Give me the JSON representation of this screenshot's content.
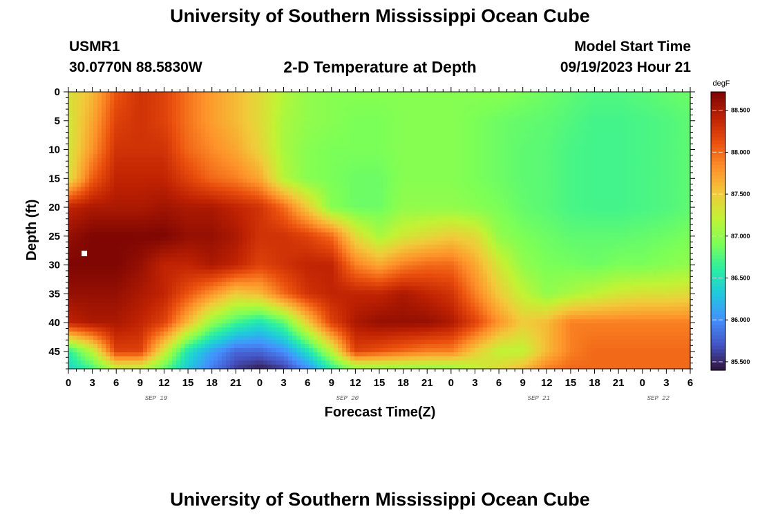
{
  "header": {
    "title": "University of Southern Mississippi Ocean Cube",
    "station": "USMR1",
    "location": "30.0770N  88.5830W",
    "subtitle": "2-D Temperature at Depth",
    "model_start_label": "Model Start Time",
    "model_start_value": "09/19/2023 Hour 21"
  },
  "footer": {
    "title": "University of Southern Mississippi Ocean Cube"
  },
  "chart_data": {
    "type": "heatmap",
    "title": "2-D Temperature at Depth",
    "xlabel": "Forecast Time(Z)",
    "ylabel": "Depth (ft)",
    "x_ticks": [
      "0",
      "3",
      "6",
      "9",
      "12",
      "15",
      "18",
      "21",
      "0",
      "3",
      "6",
      "9",
      "12",
      "15",
      "18",
      "21",
      "0",
      "3",
      "6",
      "9",
      "12",
      "15",
      "18",
      "21",
      "0",
      "3",
      "6"
    ],
    "x_hours_range": [
      0,
      78
    ],
    "date_labels": [
      {
        "text": "SEP 19",
        "hour": 11
      },
      {
        "text": "SEP 20",
        "hour": 35
      },
      {
        "text": "SEP 21",
        "hour": 59
      },
      {
        "text": "SEP 22",
        "hour": 74
      }
    ],
    "y_ticks": [
      0,
      5,
      10,
      15,
      20,
      25,
      30,
      35,
      40,
      45
    ],
    "ylim": [
      0,
      48
    ],
    "y_inverted": true,
    "colorbar": {
      "unit": "degF",
      "range": [
        85.4,
        88.72
      ],
      "ticks": [
        "85.500",
        "86.000",
        "86.500",
        "87.000",
        "87.500",
        "88.000",
        "88.500"
      ],
      "colormap": [
        "#30123b",
        "#4454c4",
        "#4490fe",
        "#1fc8de",
        "#29efa2",
        "#7dff56",
        "#c1f334",
        "#f1ca3a",
        "#fe922a",
        "#ea4f0d",
        "#be2102",
        "#7a0403"
      ]
    },
    "marker": {
      "hour": 2,
      "depth_ft": 28,
      "color": "#ffffff"
    },
    "value_grid": {
      "x_hours": [
        0,
        3,
        6,
        9,
        12,
        15,
        18,
        21,
        24,
        27,
        30,
        33,
        36,
        39,
        42,
        45,
        48,
        51,
        54,
        57,
        60,
        63,
        66,
        69,
        72,
        75,
        78
      ],
      "depths_ft": [
        0,
        5,
        10,
        15,
        20,
        25,
        30,
        35,
        40,
        45,
        48
      ],
      "values_degF": [
        [
          87.35,
          87.6,
          88.1,
          88.3,
          88.2,
          87.95,
          87.75,
          87.6,
          87.4,
          87.15,
          87.0,
          86.95,
          86.95,
          86.95,
          86.95,
          86.95,
          86.95,
          86.95,
          86.95,
          86.9,
          86.85,
          86.8,
          86.75,
          86.75,
          86.78,
          86.82,
          86.85
        ],
        [
          87.3,
          87.7,
          88.2,
          88.3,
          88.2,
          87.95,
          87.75,
          87.6,
          87.4,
          87.1,
          87.0,
          86.95,
          86.9,
          86.9,
          86.95,
          86.95,
          86.95,
          86.9,
          86.85,
          86.82,
          86.8,
          86.75,
          86.7,
          86.7,
          86.72,
          86.75,
          86.8
        ],
        [
          87.3,
          87.8,
          88.3,
          88.3,
          88.3,
          88.0,
          87.85,
          87.7,
          87.45,
          87.1,
          86.95,
          86.9,
          86.9,
          86.9,
          86.95,
          86.95,
          86.95,
          86.9,
          86.85,
          86.8,
          86.78,
          86.72,
          86.7,
          86.7,
          86.72,
          86.75,
          86.8
        ],
        [
          87.35,
          88.05,
          88.4,
          88.4,
          88.4,
          88.2,
          88.0,
          87.9,
          87.7,
          87.15,
          86.95,
          86.9,
          86.85,
          86.85,
          86.95,
          86.95,
          86.95,
          86.9,
          86.85,
          86.8,
          86.78,
          86.72,
          86.7,
          86.7,
          86.72,
          86.75,
          86.8
        ],
        [
          88.4,
          88.5,
          88.5,
          88.5,
          88.55,
          88.5,
          88.5,
          88.4,
          88.3,
          88.0,
          87.5,
          86.95,
          86.85,
          86.85,
          87.0,
          87.0,
          87.0,
          86.95,
          86.9,
          86.82,
          86.78,
          86.72,
          86.7,
          86.7,
          86.72,
          86.75,
          86.8
        ],
        [
          88.6,
          88.7,
          88.7,
          88.7,
          88.7,
          88.6,
          88.6,
          88.5,
          88.3,
          88.3,
          88.2,
          88.0,
          87.4,
          87.1,
          87.3,
          87.4,
          87.5,
          87.4,
          87.0,
          86.9,
          86.85,
          86.8,
          86.8,
          86.8,
          86.82,
          86.85,
          86.9
        ],
        [
          88.7,
          88.7,
          88.7,
          88.6,
          88.4,
          88.4,
          88.5,
          88.4,
          88.2,
          88.3,
          88.4,
          88.4,
          87.9,
          87.7,
          87.9,
          88.0,
          88.0,
          87.7,
          87.3,
          87.0,
          86.9,
          86.88,
          86.85,
          86.9,
          86.9,
          86.95,
          87.0
        ],
        [
          88.6,
          88.6,
          88.6,
          88.5,
          88.4,
          88.1,
          87.8,
          87.5,
          87.6,
          88.0,
          88.3,
          88.4,
          88.4,
          88.4,
          88.5,
          88.4,
          88.3,
          87.9,
          87.5,
          87.2,
          87.0,
          87.1,
          87.2,
          87.3,
          87.35,
          87.35,
          87.4
        ],
        [
          88.4,
          88.5,
          88.5,
          88.4,
          88.2,
          87.6,
          87.0,
          86.7,
          86.5,
          86.8,
          87.5,
          88.2,
          88.5,
          88.6,
          88.6,
          88.6,
          88.5,
          88.2,
          87.8,
          87.5,
          87.6,
          87.9,
          87.9,
          87.9,
          87.9,
          87.9,
          87.9
        ],
        [
          86.6,
          87.2,
          88.2,
          88.2,
          87.3,
          86.5,
          86.1,
          85.8,
          85.8,
          86.0,
          86.5,
          87.2,
          88.2,
          88.1,
          88.0,
          87.9,
          87.9,
          87.5,
          87.2,
          87.2,
          87.6,
          87.9,
          88.0,
          88.0,
          88.0,
          88.0,
          88.0
        ],
        [
          86.4,
          86.7,
          87.2,
          87.2,
          86.8,
          86.3,
          85.9,
          85.6,
          85.45,
          85.6,
          86.0,
          86.6,
          87.0,
          87.0,
          87.0,
          87.0,
          87.0,
          87.2,
          87.4,
          87.6,
          87.9,
          88.0,
          88.0,
          88.0,
          88.0,
          88.0,
          88.0
        ]
      ]
    }
  }
}
